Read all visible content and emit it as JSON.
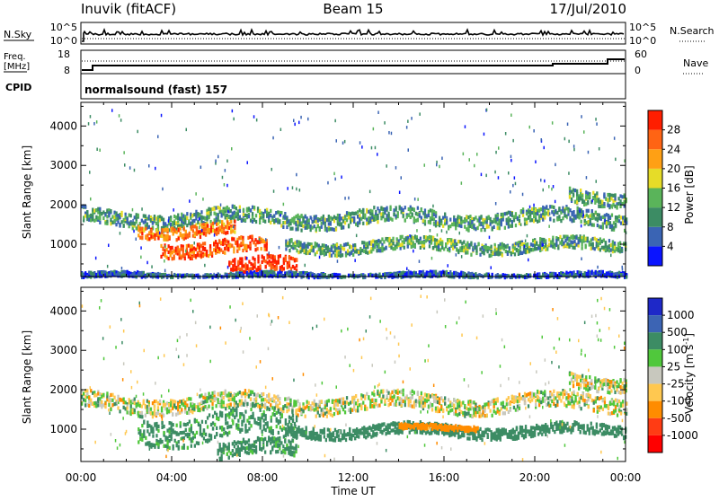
{
  "header": {
    "station": "Inuvik (fitACF)",
    "beam": "Beam 15",
    "date": "17/Jul/2010"
  },
  "nsky_panel": {
    "left_label": "N.Sky",
    "left_ticks": [
      "10^5",
      "10^0"
    ],
    "right_ticks": [
      "10^5",
      "10^0"
    ],
    "right_label": "N.Search"
  },
  "freq_panel": {
    "left_label_1": "Freq.",
    "left_label_2": "[MHz]",
    "left_ticks": [
      "18",
      "8"
    ],
    "right_ticks": [
      "60",
      "0"
    ],
    "right_label": "Nave"
  },
  "cpid_panel": {
    "label": "CPID",
    "program": "normalsound (fast) 157"
  },
  "chart_data": [
    {
      "type": "heatmap",
      "name": "power",
      "xlabel": "",
      "ylabel": "Slant Range [km]",
      "x_ticks": [
        "00:00",
        "04:00",
        "08:00",
        "12:00",
        "16:00",
        "20:00",
        "00:00"
      ],
      "y_ticks": [
        "1000",
        "2000",
        "3000",
        "4000"
      ],
      "xlim_hours": [
        0,
        24
      ],
      "ylim_km": [
        180,
        4600
      ],
      "colorbar": {
        "label": "Power [dB]",
        "ticks": [
          "4",
          "8",
          "12",
          "16",
          "20",
          "24",
          "28"
        ],
        "colors": [
          "#0a14ff",
          "#3a64b4",
          "#3c8c64",
          "#5ab45a",
          "#e6dc28",
          "#ffa014",
          "#ff6414",
          "#ff1e00"
        ]
      },
      "bands": [
        {
          "start_h": 0.0,
          "end_h": 24.0,
          "center_km": 1700,
          "width_km": 380,
          "power_db": 11
        },
        {
          "start_h": 2.5,
          "end_h": 6.8,
          "center_km": 1400,
          "width_km": 300,
          "power_db": 24
        },
        {
          "start_h": 3.5,
          "end_h": 8.2,
          "center_km": 950,
          "width_km": 350,
          "power_db": 27
        },
        {
          "start_h": 6.5,
          "end_h": 9.5,
          "center_km": 450,
          "width_km": 380,
          "power_db": 30
        },
        {
          "start_h": 9.0,
          "end_h": 24.0,
          "center_km": 1000,
          "width_km": 300,
          "power_db": 12
        },
        {
          "start_h": 0.0,
          "end_h": 24.0,
          "center_km": 250,
          "width_km": 120,
          "power_db": 6
        },
        {
          "start_h": 21.5,
          "end_h": 24.0,
          "center_km": 2250,
          "width_km": 350,
          "power_db": 12
        }
      ]
    },
    {
      "type": "heatmap",
      "name": "velocity",
      "xlabel": "Time UT",
      "ylabel": "Slant Range [km]",
      "x_ticks": [
        "00:00",
        "04:00",
        "08:00",
        "12:00",
        "16:00",
        "20:00",
        "00:00"
      ],
      "y_ticks": [
        "1000",
        "2000",
        "3000",
        "4000"
      ],
      "xlim_hours": [
        0,
        24
      ],
      "ylim_km": [
        180,
        4600
      ],
      "colorbar": {
        "label": "Velocity [m s^-1]",
        "ticks": [
          "1000",
          "500",
          "100",
          "25",
          "-25",
          "-100",
          "-500",
          "-1000"
        ],
        "colors": [
          "#1e28c8",
          "#3c64b4",
          "#3c8c64",
          "#50c83c",
          "#c8c8be",
          "#ffc850",
          "#ff8c00",
          "#ff3c14",
          "#ff0000"
        ]
      },
      "bands": [
        {
          "start_h": 0.0,
          "end_h": 24.0,
          "center_km": 1700,
          "width_km": 400,
          "velocity": 0
        },
        {
          "start_h": 2.5,
          "end_h": 9.5,
          "center_km": 1100,
          "width_km": 700,
          "velocity": 180
        },
        {
          "start_h": 6.0,
          "end_h": 9.5,
          "center_km": 500,
          "width_km": 400,
          "velocity": 180
        },
        {
          "start_h": 9.0,
          "end_h": 24.0,
          "center_km": 1000,
          "width_km": 280,
          "velocity": 300
        },
        {
          "start_h": 14.0,
          "end_h": 17.5,
          "center_km": 1080,
          "width_km": 120,
          "velocity": -300
        },
        {
          "start_h": 21.5,
          "end_h": 24.0,
          "center_km": 2250,
          "width_km": 350,
          "velocity": 0
        }
      ]
    }
  ]
}
